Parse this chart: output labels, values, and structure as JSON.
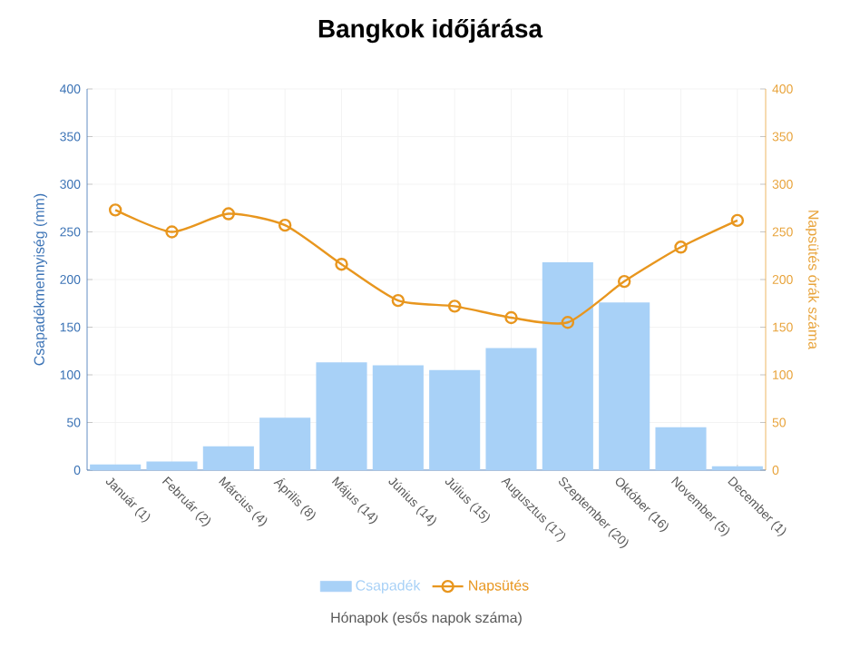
{
  "chart_data": {
    "type": "bar",
    "title": "Bangkok időjárása",
    "xlabel": "Hónapok (esős napok száma)",
    "ylabel": "Csapadékmennyiség (mm)",
    "y2label": "Napsütés órák száma",
    "categories": [
      "Január (1)",
      "Február (2)",
      "Március (4)",
      "Április (8)",
      "Május (14)",
      "Június (14)",
      "Július (15)",
      "Augusztus (17)",
      "Szeptember (20)",
      "Október (16)",
      "November (5)",
      "December (1)"
    ],
    "series": [
      {
        "name": "Csapadék",
        "color": "#a8d1f7",
        "values": [
          6,
          9,
          25,
          55,
          113,
          110,
          105,
          128,
          218,
          176,
          45,
          4
        ]
      },
      {
        "name": "Napsütés",
        "type": "line",
        "axis": "y2",
        "color": "#e8961e",
        "values": [
          273,
          250,
          269,
          257,
          216,
          178,
          172,
          160,
          155,
          198,
          234,
          262
        ]
      }
    ],
    "ylim": [
      0,
      400
    ],
    "yticks": [
      0,
      50,
      100,
      150,
      200,
      250,
      300,
      350,
      400
    ],
    "y2lim": [
      0,
      400
    ],
    "y2ticks": [
      0,
      50,
      100,
      150,
      200,
      250,
      300,
      350,
      400
    ],
    "grid": true,
    "legend": "bottom",
    "marker": "circle"
  }
}
